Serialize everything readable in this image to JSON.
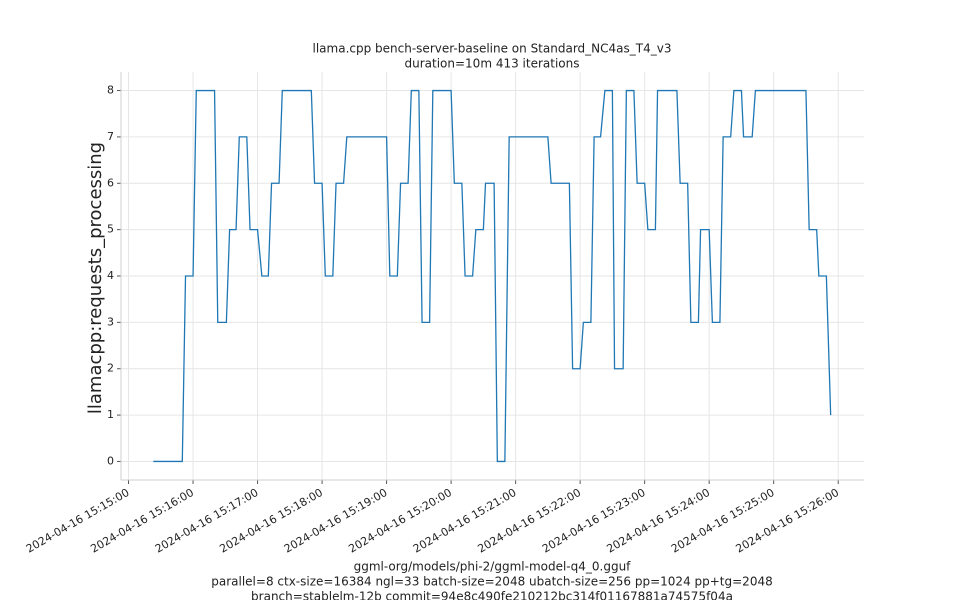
{
  "chart_data": {
    "type": "line",
    "title": "llama.cpp bench-server-baseline on Standard_NC4as_T4_v3",
    "subtitle": "duration=10m 413 iterations",
    "y_label": "llamacpp:requests_processing",
    "x_label": [
      "ggml-org/models/phi-2/ggml-model-q4_0.gguf",
      "parallel=8 ctx-size=16384 ngl=33 batch-size=2048 ubatch-size=256 pp=1024 pp+tg=2048",
      "branch=stablelm-12b commit=94e8c490fe210212bc314f01167881a74575f04a"
    ],
    "color": "#1f77b4",
    "grid": true,
    "x": [
      "2024-04-16 15:15:23",
      "2024-04-16 15:15:50",
      "2024-04-16 15:15:53",
      "2024-04-16 15:16:00",
      "2024-04-16 15:16:03",
      "2024-04-16 15:16:20",
      "2024-04-16 15:16:23",
      "2024-04-16 15:16:31",
      "2024-04-16 15:16:34",
      "2024-04-16 15:16:40",
      "2024-04-16 15:16:43",
      "2024-04-16 15:16:50",
      "2024-04-16 15:16:53",
      "2024-04-16 15:17:00",
      "2024-04-16 15:17:04",
      "2024-04-16 15:17:10",
      "2024-04-16 15:17:13",
      "2024-04-16 15:17:20",
      "2024-04-16 15:17:23",
      "2024-04-16 15:17:50",
      "2024-04-16 15:17:53",
      "2024-04-16 15:18:00",
      "2024-04-16 15:18:03",
      "2024-04-16 15:18:10",
      "2024-04-16 15:18:13",
      "2024-04-16 15:18:20",
      "2024-04-16 15:18:23",
      "2024-04-16 15:19:00",
      "2024-04-16 15:19:03",
      "2024-04-16 15:19:10",
      "2024-04-16 15:19:13",
      "2024-04-16 15:19:20",
      "2024-04-16 15:19:23",
      "2024-04-16 15:19:30",
      "2024-04-16 15:19:33",
      "2024-04-16 15:19:40",
      "2024-04-16 15:19:43",
      "2024-04-16 15:20:00",
      "2024-04-16 15:20:03",
      "2024-04-16 15:20:10",
      "2024-04-16 15:20:13",
      "2024-04-16 15:20:20",
      "2024-04-16 15:20:23",
      "2024-04-16 15:20:30",
      "2024-04-16 15:20:32",
      "2024-04-16 15:20:40",
      "2024-04-16 15:20:43",
      "2024-04-16 15:20:50",
      "2024-04-16 15:20:54",
      "2024-04-16 15:21:30",
      "2024-04-16 15:21:33",
      "2024-04-16 15:21:50",
      "2024-04-16 15:21:53",
      "2024-04-16 15:22:00",
      "2024-04-16 15:22:03",
      "2024-04-16 15:22:10",
      "2024-04-16 15:22:13",
      "2024-04-16 15:22:19",
      "2024-04-16 15:22:23",
      "2024-04-16 15:22:30",
      "2024-04-16 15:22:32",
      "2024-04-16 15:22:40",
      "2024-04-16 15:22:43",
      "2024-04-16 15:22:50",
      "2024-04-16 15:22:53",
      "2024-04-16 15:23:00",
      "2024-04-16 15:23:03",
      "2024-04-16 15:23:10",
      "2024-04-16 15:23:12",
      "2024-04-16 15:23:30",
      "2024-04-16 15:23:33",
      "2024-04-16 15:23:40",
      "2024-04-16 15:23:43",
      "2024-04-16 15:23:50",
      "2024-04-16 15:23:52",
      "2024-04-16 15:24:00",
      "2024-04-16 15:24:03",
      "2024-04-16 15:24:10",
      "2024-04-16 15:24:13",
      "2024-04-16 15:24:20",
      "2024-04-16 15:24:23",
      "2024-04-16 15:24:30",
      "2024-04-16 15:24:32",
      "2024-04-16 15:24:40",
      "2024-04-16 15:24:43",
      "2024-04-16 15:25:30",
      "2024-04-16 15:25:33",
      "2024-04-16 15:25:40",
      "2024-04-16 15:25:42",
      "2024-04-16 15:25:49",
      "2024-04-16 15:25:53"
    ],
    "values": [
      0,
      0,
      4,
      4,
      8,
      8,
      3,
      3,
      5,
      5,
      7,
      7,
      5,
      5,
      4,
      4,
      6,
      6,
      8,
      8,
      6,
      6,
      4,
      4,
      6,
      6,
      7,
      7,
      4,
      4,
      6,
      6,
      8,
      8,
      3,
      3,
      8,
      8,
      6,
      6,
      4,
      4,
      5,
      5,
      6,
      6,
      0,
      0,
      7,
      7,
      6,
      6,
      2,
      2,
      3,
      3,
      7,
      7,
      8,
      8,
      2,
      2,
      8,
      8,
      6,
      6,
      5,
      5,
      8,
      8,
      6,
      6,
      3,
      3,
      5,
      5,
      3,
      3,
      7,
      7,
      8,
      8,
      7,
      7,
      8,
      8,
      5,
      5,
      4,
      4,
      1
    ],
    "xlim": [
      "2024-04-16 15:14:53",
      "2024-04-16 15:26:24"
    ],
    "xticks": [
      "2024-04-16 15:15:00",
      "2024-04-16 15:16:00",
      "2024-04-16 15:17:00",
      "2024-04-16 15:18:00",
      "2024-04-16 15:19:00",
      "2024-04-16 15:20:00",
      "2024-04-16 15:21:00",
      "2024-04-16 15:22:00",
      "2024-04-16 15:23:00",
      "2024-04-16 15:24:00",
      "2024-04-16 15:25:00",
      "2024-04-16 15:26:00"
    ],
    "ylim": [
      -0.4,
      8.4
    ],
    "yticks": [
      0,
      1,
      2,
      3,
      4,
      5,
      6,
      7,
      8
    ]
  }
}
